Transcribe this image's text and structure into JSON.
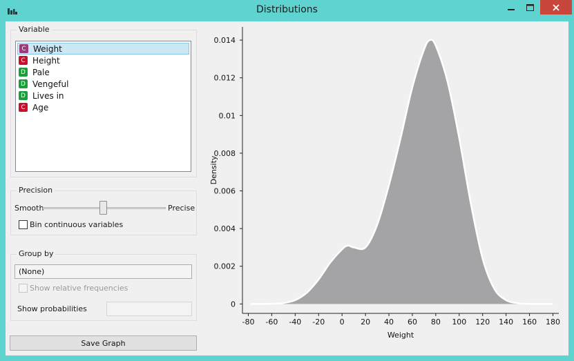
{
  "window": {
    "title": "Distributions",
    "app_icon": "bar-chart-icon",
    "minimize_icon": "minimize-icon",
    "maximize_icon": "maximize-icon",
    "close_icon": "close-icon"
  },
  "variable_box": {
    "label": "Variable",
    "items": [
      {
        "type_letter": "C",
        "name": "Weight",
        "color": "#9c3a7a",
        "selected": true
      },
      {
        "type_letter": "C",
        "name": "Height",
        "color": "#c8102e",
        "selected": false
      },
      {
        "type_letter": "D",
        "name": "Pale",
        "color": "#1a9e3a",
        "selected": false
      },
      {
        "type_letter": "D",
        "name": "Vengeful",
        "color": "#1a9e3a",
        "selected": false
      },
      {
        "type_letter": "D",
        "name": "Lives in",
        "color": "#1a9e3a",
        "selected": false
      },
      {
        "type_letter": "C",
        "name": "Age",
        "color": "#c8102e",
        "selected": false
      }
    ]
  },
  "precision_box": {
    "label": "Precision",
    "smooth_label": "Smooth",
    "precise_label": "Precise",
    "slider_level": 0.5,
    "bin_checkbox_label": "Bin continuous variables",
    "bin_checked": false
  },
  "group_by_box": {
    "label": "Group by",
    "selected": "(None)",
    "relative_freq_label": "Show relative frequencies",
    "relative_freq_checked": false,
    "show_probabilities_label": "Show probabilities",
    "show_probabilities_value": ""
  },
  "save_button_label": "Save Graph",
  "chart_data": {
    "type": "area",
    "xlabel": "Weight",
    "ylabel": "Density",
    "xlim": [
      -85,
      185
    ],
    "ylim": [
      -0.0005,
      0.0147
    ],
    "x_ticks": [
      -80,
      -60,
      -40,
      -20,
      0,
      20,
      40,
      60,
      80,
      100,
      120,
      140,
      160,
      180
    ],
    "y_ticks": [
      0,
      0.002,
      0.004,
      0.006,
      0.008,
      0.01,
      0.012,
      0.014
    ],
    "y_tick_labels": [
      "0",
      "0.002",
      "0.004",
      "0.006",
      "0.008",
      "0.01",
      "0.012",
      "0.014"
    ],
    "x": [
      -78,
      -70,
      -60,
      -50,
      -40,
      -30,
      -20,
      -10,
      0,
      5,
      10,
      20,
      30,
      40,
      50,
      60,
      70,
      75,
      80,
      90,
      100,
      110,
      120,
      130,
      140,
      150,
      160,
      170,
      180
    ],
    "y": [
      0,
      0,
      1e-05,
      5e-05,
      0.0002,
      0.0006,
      0.0013,
      0.0022,
      0.0029,
      0.0031,
      0.003,
      0.003,
      0.0042,
      0.0063,
      0.0088,
      0.0115,
      0.0135,
      0.014,
      0.0137,
      0.0118,
      0.0088,
      0.0053,
      0.0024,
      0.0008,
      0.0002,
      4e-05,
      0,
      0,
      0
    ],
    "fill_color": "#a4a3a5",
    "line_color": "#ffffff"
  }
}
